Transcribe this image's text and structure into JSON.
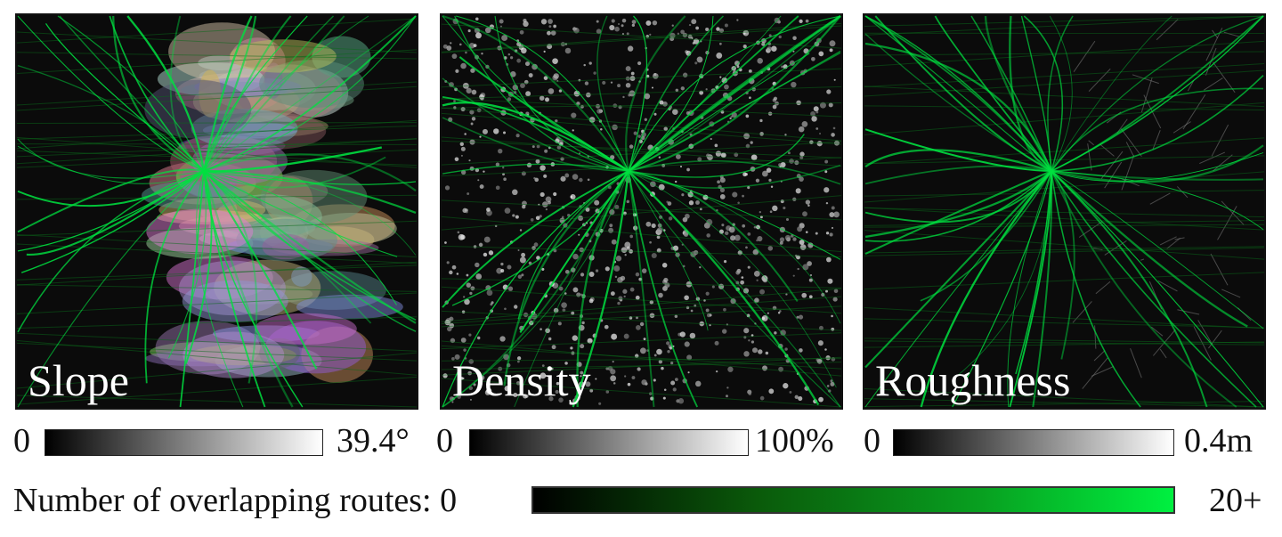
{
  "panels": [
    {
      "label": "Slope",
      "colorbar": {
        "min": "0",
        "max": "39.4°"
      }
    },
    {
      "label": "Density",
      "colorbar": {
        "min": "0",
        "max": "100%"
      }
    },
    {
      "label": "Roughness",
      "colorbar": {
        "min": "0",
        "max": "0.4m"
      }
    }
  ],
  "route_legend": {
    "label": "Number of overlapping routes: 0",
    "max": "20+",
    "colors": [
      "#000000",
      "#00f040"
    ]
  },
  "colors": {
    "route": "#00e040",
    "colorbar_low": "#000000",
    "colorbar_high": "#ffffff"
  }
}
